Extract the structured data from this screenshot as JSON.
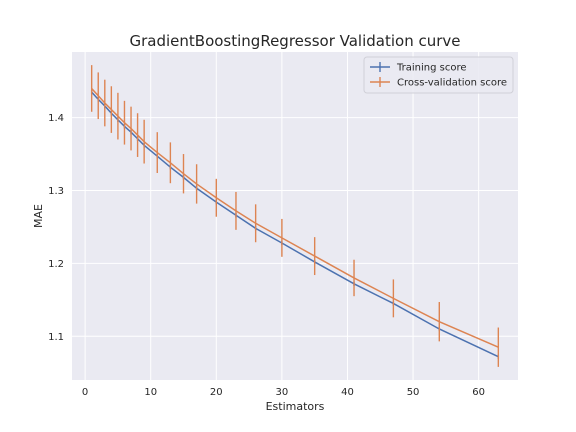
{
  "chart_data": {
    "type": "line",
    "title": "GradientBoostingRegressor Validation curve",
    "xlabel": "Estimators",
    "ylabel": "MAE",
    "xlim": [
      -2,
      66
    ],
    "ylim": [
      1.04,
      1.49
    ],
    "xticks": [
      0,
      10,
      20,
      30,
      40,
      50,
      60
    ],
    "yticks": [
      1.1,
      1.2,
      1.3,
      1.4
    ],
    "x": [
      1,
      2,
      3,
      4,
      5,
      6,
      7,
      8,
      9,
      11,
      13,
      15,
      17,
      20,
      23,
      26,
      30,
      35,
      41,
      47,
      54,
      63
    ],
    "grid": true,
    "legend_position": "top-right",
    "background": "#eaeaf2",
    "series": [
      {
        "name": "Training score",
        "color": "#4c72b0",
        "values": [
          1.435,
          1.425,
          1.416,
          1.406,
          1.397,
          1.388,
          1.38,
          1.371,
          1.362,
          1.347,
          1.332,
          1.318,
          1.303,
          1.284,
          1.266,
          1.248,
          1.228,
          1.202,
          1.172,
          1.145,
          1.11,
          1.072
        ],
        "errors": [
          0.003,
          0.003,
          0.003,
          0.003,
          0.003,
          0.003,
          0.003,
          0.003,
          0.003,
          0.003,
          0.003,
          0.003,
          0.003,
          0.003,
          0.003,
          0.003,
          0.003,
          0.003,
          0.003,
          0.003,
          0.003,
          0.003
        ]
      },
      {
        "name": "Cross-validation score",
        "color": "#dd8452",
        "values": [
          1.44,
          1.43,
          1.42,
          1.411,
          1.402,
          1.393,
          1.385,
          1.376,
          1.367,
          1.352,
          1.338,
          1.323,
          1.309,
          1.29,
          1.272,
          1.255,
          1.235,
          1.21,
          1.18,
          1.152,
          1.12,
          1.085
        ],
        "errors": [
          0.032,
          0.032,
          0.032,
          0.032,
          0.032,
          0.03,
          0.03,
          0.03,
          0.03,
          0.028,
          0.028,
          0.027,
          0.027,
          0.026,
          0.026,
          0.026,
          0.026,
          0.026,
          0.025,
          0.026,
          0.027,
          0.027
        ]
      }
    ]
  }
}
